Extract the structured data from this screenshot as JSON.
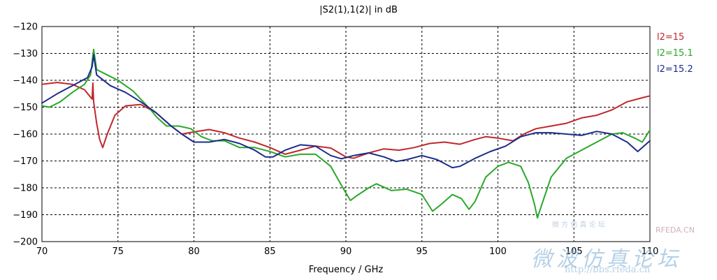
{
  "chart_data": {
    "type": "line",
    "title": "|S2(1),1(2)| in dB",
    "xlabel": "Frequency / GHz",
    "ylabel": "",
    "xlim": [
      70,
      110
    ],
    "ylim": [
      -200,
      -120
    ],
    "xticks": [
      70,
      75,
      80,
      85,
      90,
      95,
      100,
      105,
      110
    ],
    "yticks": [
      -120,
      -130,
      -140,
      -150,
      -160,
      -170,
      -180,
      -190,
      -200
    ],
    "grid": true,
    "legend_position": "right-top",
    "series": [
      {
        "name": "l2=15",
        "color": "#c0282d",
        "points": [
          [
            70,
            -141.5
          ],
          [
            71,
            -140.8
          ],
          [
            72,
            -141.5
          ],
          [
            72.8,
            -143.5
          ],
          [
            73.3,
            -147
          ],
          [
            73.35,
            -141
          ],
          [
            73.4,
            -148
          ],
          [
            73.6,
            -156
          ],
          [
            73.8,
            -162
          ],
          [
            74,
            -165
          ],
          [
            74.3,
            -160
          ],
          [
            74.8,
            -153
          ],
          [
            75.5,
            -149.5
          ],
          [
            76.5,
            -149
          ],
          [
            77.5,
            -152
          ],
          [
            78.5,
            -157
          ],
          [
            79.2,
            -160
          ],
          [
            80,
            -159.2
          ],
          [
            81,
            -158.3
          ],
          [
            82,
            -159.5
          ],
          [
            83,
            -161.5
          ],
          [
            84,
            -163
          ],
          [
            85,
            -165
          ],
          [
            86,
            -167.5
          ],
          [
            87,
            -166
          ],
          [
            88,
            -164.5
          ],
          [
            89,
            -165.2
          ],
          [
            90,
            -168.5
          ],
          [
            90.5,
            -169
          ],
          [
            91.5,
            -167
          ],
          [
            92.5,
            -165.5
          ],
          [
            93.5,
            -166
          ],
          [
            94.5,
            -165
          ],
          [
            95.5,
            -163.5
          ],
          [
            96.5,
            -163
          ],
          [
            97.5,
            -163.8
          ],
          [
            98.5,
            -162
          ],
          [
            99.2,
            -161
          ],
          [
            100,
            -161.5
          ],
          [
            101,
            -162.5
          ],
          [
            101.7,
            -160
          ],
          [
            102.5,
            -158
          ],
          [
            103.5,
            -157
          ],
          [
            104.5,
            -156
          ],
          [
            105.5,
            -154
          ],
          [
            106.5,
            -153
          ],
          [
            107.5,
            -151
          ],
          [
            108.5,
            -148
          ],
          [
            109.5,
            -146.5
          ],
          [
            110,
            -145.8
          ]
        ]
      },
      {
        "name": "l2=15.1",
        "color": "#2aa82a",
        "points": [
          [
            70,
            -149.5
          ],
          [
            70.5,
            -150
          ],
          [
            71.2,
            -148
          ],
          [
            72,
            -144.5
          ],
          [
            72.8,
            -141.5
          ],
          [
            73.2,
            -138
          ],
          [
            73.4,
            -128.5
          ],
          [
            73.6,
            -136
          ],
          [
            74.3,
            -138
          ],
          [
            75,
            -140
          ],
          [
            76,
            -144
          ],
          [
            77,
            -150
          ],
          [
            77.6,
            -154
          ],
          [
            78.2,
            -157
          ],
          [
            79,
            -157
          ],
          [
            79.8,
            -158
          ],
          [
            80.5,
            -161
          ],
          [
            81.2,
            -162.5
          ],
          [
            82,
            -162.5
          ],
          [
            83,
            -165
          ],
          [
            84,
            -165
          ],
          [
            85,
            -166.5
          ],
          [
            86,
            -168.5
          ],
          [
            87,
            -167.5
          ],
          [
            88,
            -167.5
          ],
          [
            89,
            -172
          ],
          [
            89.8,
            -180
          ],
          [
            90.3,
            -184.7
          ],
          [
            90.7,
            -183
          ],
          [
            91.5,
            -180
          ],
          [
            92,
            -178.5
          ],
          [
            93,
            -181
          ],
          [
            94,
            -180.5
          ],
          [
            95,
            -182.5
          ],
          [
            95.7,
            -188.7
          ],
          [
            96.3,
            -186
          ],
          [
            97,
            -182.5
          ],
          [
            97.6,
            -184
          ],
          [
            98.1,
            -188
          ],
          [
            98.5,
            -185
          ],
          [
            99.2,
            -176
          ],
          [
            100,
            -172
          ],
          [
            100.7,
            -170.5
          ],
          [
            101.5,
            -172
          ],
          [
            102,
            -178
          ],
          [
            102.4,
            -186
          ],
          [
            102.6,
            -191.2
          ],
          [
            102.9,
            -186
          ],
          [
            103.5,
            -176
          ],
          [
            104.5,
            -169
          ],
          [
            105.5,
            -166
          ],
          [
            106.5,
            -163
          ],
          [
            107.5,
            -160
          ],
          [
            108.2,
            -159.5
          ],
          [
            109,
            -161.5
          ],
          [
            109.5,
            -163
          ],
          [
            110,
            -158.5
          ]
        ]
      },
      {
        "name": "l2=15.2",
        "color": "#1c2c8c",
        "points": [
          [
            70,
            -148.5
          ],
          [
            71,
            -145
          ],
          [
            72,
            -142
          ],
          [
            73,
            -139
          ],
          [
            73.3,
            -135
          ],
          [
            73.4,
            -130.5
          ],
          [
            73.6,
            -138
          ],
          [
            74.5,
            -142
          ],
          [
            75.5,
            -144.5
          ],
          [
            76.5,
            -148
          ],
          [
            77.5,
            -152
          ],
          [
            78.5,
            -157
          ],
          [
            79.2,
            -160
          ],
          [
            80,
            -163
          ],
          [
            81,
            -163
          ],
          [
            82,
            -162
          ],
          [
            83,
            -163.5
          ],
          [
            84,
            -166
          ],
          [
            84.7,
            -168.5
          ],
          [
            85.2,
            -168.5
          ],
          [
            86,
            -166
          ],
          [
            87,
            -164
          ],
          [
            88,
            -164.5
          ],
          [
            89,
            -168
          ],
          [
            89.7,
            -169.2
          ],
          [
            90.5,
            -168
          ],
          [
            91.5,
            -167
          ],
          [
            92.5,
            -168.5
          ],
          [
            93.3,
            -170.2
          ],
          [
            94,
            -169.5
          ],
          [
            95,
            -168
          ],
          [
            96,
            -169.5
          ],
          [
            97,
            -172.5
          ],
          [
            97.5,
            -172
          ],
          [
            98.5,
            -169
          ],
          [
            99.5,
            -166.5
          ],
          [
            100.5,
            -164.5
          ],
          [
            101.5,
            -161
          ],
          [
            102.5,
            -159.5
          ],
          [
            103.5,
            -159.5
          ],
          [
            104.5,
            -160
          ],
          [
            105.5,
            -160.5
          ],
          [
            106.5,
            -159
          ],
          [
            107.5,
            -160
          ],
          [
            108.5,
            -163
          ],
          [
            109.2,
            -166.5
          ],
          [
            110,
            -162.5
          ]
        ]
      }
    ]
  }
}
